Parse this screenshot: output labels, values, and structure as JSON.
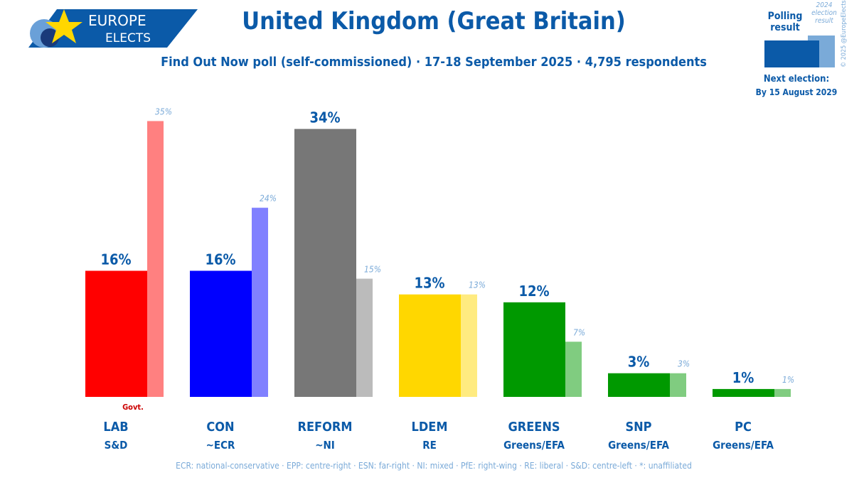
{
  "header": {
    "logo_text_1": "EUROPE",
    "logo_text_2": "ELECTS",
    "title": "United Kingdom (Great Britain)",
    "subtitle": "Find Out Now poll (self-commissioned) · 17-18 September 2025 · 4,795 respondents"
  },
  "legend": {
    "polling": "Polling result",
    "previous": "2024 election result",
    "copyright": "© 2025 @EuropeElects",
    "next_election_label": "Next election:",
    "next_election_date": "By 15 August 2029"
  },
  "footnote": "ECR: national-conservative · EPP: centre-right · ESN: far-right · NI: mixed · PfE: right-wing · RE: liberal · S&D: centre-left · *: unaffiliated",
  "chart_data": {
    "type": "bar",
    "categories": [
      "LAB",
      "CON",
      "REFORM",
      "LDEM",
      "GREENS",
      "SNP",
      "PC"
    ],
    "groups": [
      "S&D",
      "~ECR",
      "~NI",
      "RE",
      "Greens/EFA",
      "Greens/EFA",
      "Greens/EFA"
    ],
    "series": [
      {
        "name": "Polling result",
        "values": [
          16,
          16,
          34,
          13,
          12,
          3,
          1
        ],
        "colors": [
          "#ff0000",
          "#0000ff",
          "#777777",
          "#ffd700",
          "#009900",
          "#009900",
          "#009900"
        ]
      },
      {
        "name": "2024 election result",
        "values": [
          35,
          24,
          15,
          13,
          7,
          3,
          1
        ],
        "colors": [
          "#ff8080",
          "#8080ff",
          "#bbbbbb",
          "#ffeb80",
          "#80cc80",
          "#80cc80",
          "#80cc80"
        ]
      }
    ],
    "annotations": [
      {
        "category": "LAB",
        "text": "Govt."
      }
    ],
    "ylim": [
      0,
      35
    ]
  }
}
